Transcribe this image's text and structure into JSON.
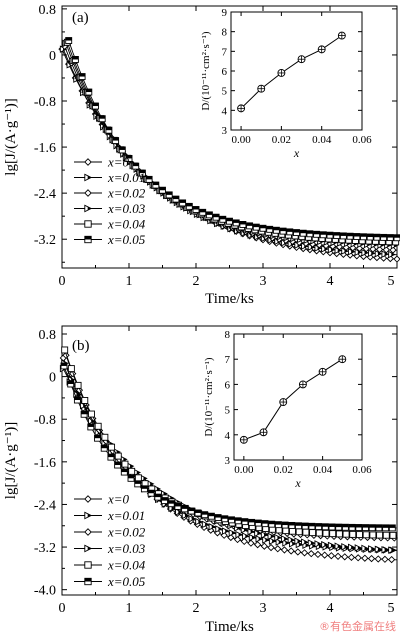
{
  "watermark": "®有色金属在线",
  "chart_data": [
    {
      "type": "line",
      "panel_label": "(a)",
      "xlabel": "Time/ks",
      "ylabel": "lg[J/(A·g⁻¹)]",
      "xlim": [
        0,
        5
      ],
      "ylim": [
        -3.7,
        0.85
      ],
      "xticks": [
        "0",
        "1",
        "2",
        "3",
        "4",
        "5"
      ],
      "yticks": [
        {
          "v": 0.8,
          "label": "0.8"
        },
        {
          "v": 0,
          "label": "0"
        },
        {
          "v": -0.8,
          "label": "-0.8"
        },
        {
          "v": -1.6,
          "label": "-1.6"
        },
        {
          "v": -2.4,
          "label": "-2.4"
        },
        {
          "v": -3.2,
          "label": "-3.2"
        }
      ],
      "legend_position": "left",
      "series": [
        {
          "name": "x=0",
          "marker": "diamond",
          "start": [
            0.0,
            0.1
          ],
          "k": 1.4,
          "yinf": -3.65
        },
        {
          "name": "x=0.01",
          "marker": "right-tri",
          "start": [
            0.02,
            0.1
          ],
          "k": 1.3,
          "yinf": -3.55
        },
        {
          "name": "x=0.02",
          "marker": "diamond",
          "start": [
            0.04,
            0.15
          ],
          "k": 1.2,
          "yinf": -3.45
        },
        {
          "name": "x=0.03",
          "marker": "right-tri",
          "start": [
            0.06,
            0.2
          ],
          "k": 1.1,
          "yinf": -3.35
        },
        {
          "name": "x=0.04",
          "marker": "square",
          "start": [
            0.08,
            0.22
          ],
          "k": 1.05,
          "yinf": -3.28
        },
        {
          "name": "x=0.05",
          "marker": "half-square",
          "start": [
            0.1,
            0.25
          ],
          "k": 1.0,
          "yinf": -3.2
        }
      ],
      "inset": {
        "xlabel": "x",
        "ylabel": "D/(10⁻¹¹·cm²·s⁻¹)",
        "xlim": [
          -0.005,
          0.06
        ],
        "ylim": [
          3,
          9
        ],
        "xticks": [
          "0.00",
          "0.02",
          "0.04",
          "0.06"
        ],
        "yticks": [
          "3",
          "4",
          "5",
          "6",
          "7",
          "8",
          "9"
        ],
        "x": [
          0,
          0.01,
          0.02,
          0.03,
          0.04,
          0.05
        ],
        "y": [
          4.1,
          5.1,
          5.9,
          6.6,
          7.1,
          7.8
        ]
      }
    },
    {
      "type": "line",
      "panel_label": "(b)",
      "xlabel": "Time/ks",
      "ylabel": "lg[J/(A·g⁻¹)]",
      "xlim": [
        0,
        5
      ],
      "ylim": [
        -4.1,
        0.95
      ],
      "xticks": [
        "0",
        "1",
        "2",
        "3",
        "4",
        "5"
      ],
      "yticks": [
        {
          "v": 0.8,
          "label": "0.8"
        },
        {
          "v": 0,
          "label": "0"
        },
        {
          "v": -0.8,
          "label": "-0.8"
        },
        {
          "v": -1.6,
          "label": "-1.6"
        },
        {
          "v": -2.4,
          "label": "-2.4"
        },
        {
          "v": -3.2,
          "label": "-3.2"
        },
        {
          "v": -4.0,
          "label": "-4.0"
        }
      ],
      "legend_position": "left",
      "series": [
        {
          "name": "x=0",
          "marker": "diamond",
          "start": [
            0.02,
            0.35
          ],
          "k": 1.2,
          "yinf": -3.5
        },
        {
          "name": "x=0.01",
          "marker": "right-tri",
          "start": [
            0.04,
            0.25
          ],
          "k": 1.1,
          "yinf": -3.3
        },
        {
          "name": "x=0.02",
          "marker": "diamond",
          "start": [
            0.06,
            0.4
          ],
          "k": 0.95,
          "yinf": -3.05
        },
        {
          "name": "x=0.03",
          "marker": "right-tri",
          "start": [
            0.02,
            0.15
          ],
          "k": 1.35,
          "yinf": -3.35
        },
        {
          "name": "x=0.04",
          "marker": "square",
          "start": [
            0.04,
            0.5
          ],
          "k": 0.95,
          "yinf": -3.0
        },
        {
          "name": "x=0.05",
          "marker": "half-square",
          "start": [
            0.03,
            0.2
          ],
          "k": 0.85,
          "yinf": -2.85
        }
      ],
      "inset": {
        "xlabel": "x",
        "ylabel": "D/(10⁻¹¹·cm²·s⁻¹)",
        "xlim": [
          -0.005,
          0.06
        ],
        "ylim": [
          3,
          8
        ],
        "xticks": [
          "0.00",
          "0.02",
          "0.04",
          "0.06"
        ],
        "yticks": [
          "3",
          "4",
          "5",
          "6",
          "7",
          "8"
        ],
        "x": [
          0,
          0.01,
          0.02,
          0.03,
          0.04,
          0.05
        ],
        "y": [
          3.8,
          4.1,
          5.3,
          6.0,
          6.5,
          7.0
        ]
      }
    }
  ]
}
